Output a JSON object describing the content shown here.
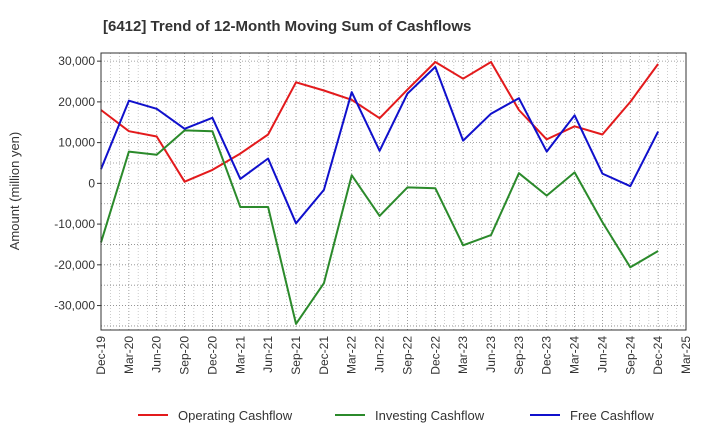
{
  "chart_data": {
    "type": "line",
    "title": "[6412]  Trend of 12-Month Moving Sum of Cashflows",
    "ylabel": "Amount (million yen)",
    "xlabel": "",
    "ylim": [
      -36000,
      32000
    ],
    "yticks": [
      30000,
      20000,
      10000,
      0,
      -10000,
      -20000,
      -30000
    ],
    "ytick_labels": [
      "30,000",
      "20,000",
      "10,000",
      "0",
      "-10,000",
      "-20,000",
      "-30,000"
    ],
    "x_tick_labels": [
      "Dec-19",
      "Mar-20",
      "Jun-20",
      "Sep-20",
      "Dec-20",
      "Mar-21",
      "Jun-21",
      "Sep-21",
      "Dec-21",
      "Mar-22",
      "Jun-22",
      "Sep-22",
      "Dec-22",
      "Mar-23",
      "Jun-23",
      "Sep-23",
      "Dec-23",
      "Mar-24",
      "Jun-24",
      "Sep-24",
      "Dec-24",
      "Mar-25"
    ],
    "x": [
      "Dec-19",
      "Mar-20",
      "Jun-20",
      "Sep-20",
      "Dec-20",
      "Mar-21",
      "Jun-21",
      "Sep-21",
      "Dec-21",
      "Mar-22",
      "Jun-22",
      "Sep-22",
      "Dec-22",
      "Mar-23",
      "Jun-23",
      "Sep-23",
      "Dec-23",
      "Mar-24",
      "Jun-24",
      "Sep-24",
      "Dec-24"
    ],
    "grid": true,
    "legend_position": "bottom",
    "series": [
      {
        "name": "Operating Cashflow",
        "color": "#e31a1c",
        "values": [
          18000,
          12800,
          11500,
          400,
          3300,
          7300,
          12000,
          24800,
          22800,
          20500,
          16000,
          23000,
          29800,
          25700,
          29800,
          18000,
          10800,
          14000,
          12000,
          20000,
          29300
        ]
      },
      {
        "name": "Investing Cashflow",
        "color": "#2b8a2b",
        "values": [
          -14500,
          7800,
          7000,
          13000,
          12800,
          -5800,
          -5800,
          -34500,
          -24500,
          2000,
          -8000,
          -1000,
          -1200,
          -15200,
          -12700,
          2500,
          -3000,
          2700,
          -9500,
          -20600,
          -16600
        ]
      },
      {
        "name": "Free Cashflow",
        "color": "#1010cc",
        "values": [
          3500,
          20300,
          18300,
          13400,
          16100,
          1100,
          6100,
          -9800,
          -1600,
          22400,
          8000,
          22000,
          28600,
          10500,
          17100,
          20900,
          7800,
          16700,
          2400,
          -700,
          12700
        ]
      }
    ]
  }
}
